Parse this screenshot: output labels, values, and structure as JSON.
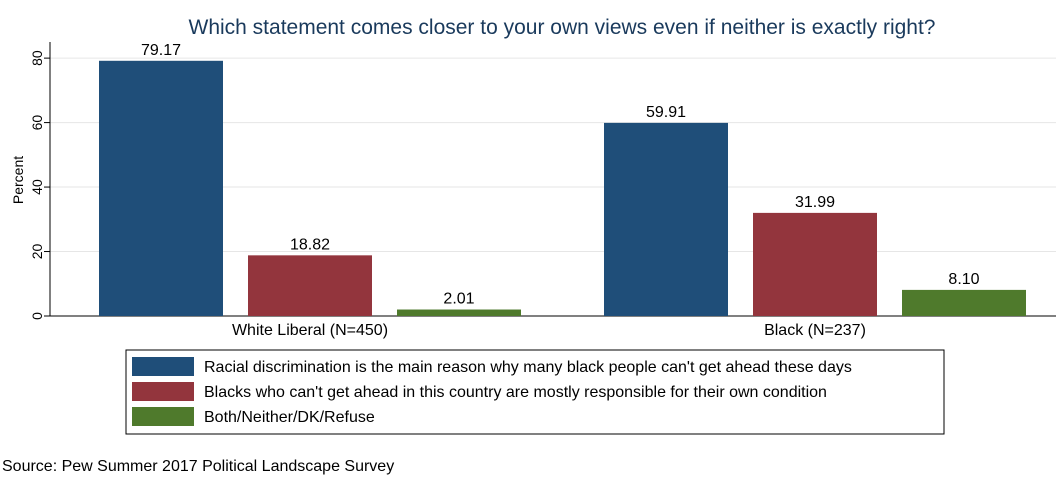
{
  "chart_data": {
    "type": "bar",
    "title": "Which statement comes closer to your own views even if neither is exactly right?",
    "ylabel": "Percent",
    "ylim": [
      0,
      85
    ],
    "yticks": [
      0,
      20,
      40,
      60,
      80
    ],
    "categories": [
      "White Liberal (N=450)",
      "Black (N=237)"
    ],
    "series": [
      {
        "name": "Racial discrimination is the main reason why many black people can't get ahead these days",
        "color": "#1f4e79",
        "values": [
          79.17,
          59.91
        ],
        "labels": [
          "79.17",
          "59.91"
        ]
      },
      {
        "name": "Blacks who can't get ahead in this country are mostly responsible for their own condition",
        "color": "#93353d",
        "values": [
          18.82,
          31.99
        ],
        "labels": [
          "18.82",
          "31.99"
        ]
      },
      {
        "name": "Both/Neither/DK/Refuse",
        "color": "#4f7a2c",
        "values": [
          2.01,
          8.1
        ],
        "labels": [
          "2.01",
          "8.10"
        ]
      }
    ],
    "grid": true,
    "legend_position": "bottom",
    "note": "Source: Pew Summer 2017 Political Landscape Survey"
  }
}
